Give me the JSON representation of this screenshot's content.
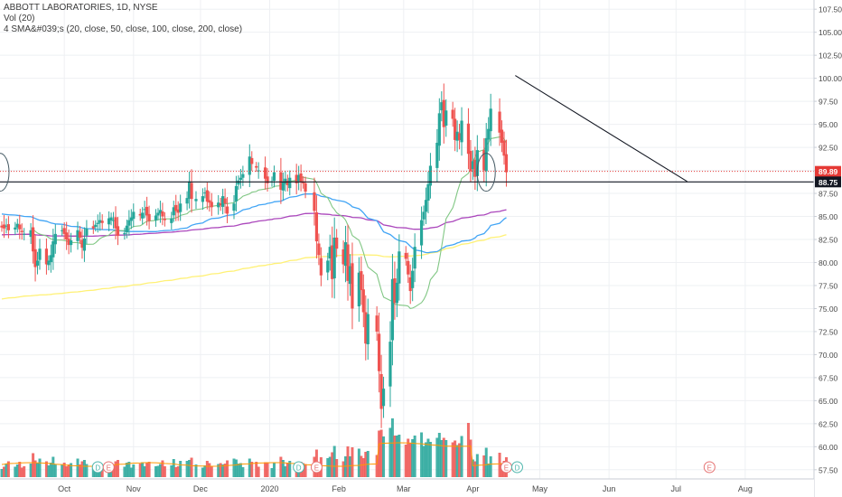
{
  "legend": {
    "title": "ABBOTT LABORATORIES, 1D, NYSE",
    "volume": "Vol (20)",
    "sma": "4 SMA&#039;s (20, close, 50, close, 100, close, 200, close)"
  },
  "chart_data": {
    "type": "candlestick",
    "title": "ABBOTT LABORATORIES, 1D, NYSE",
    "y_axis": {
      "min": 56.5,
      "max": 108.5,
      "ticks": [
        57.5,
        60.0,
        62.5,
        65.0,
        67.5,
        70.0,
        72.5,
        75.0,
        77.5,
        80.0,
        82.5,
        85.0,
        87.5,
        90.0,
        92.5,
        95.0,
        97.5,
        100.0,
        102.5,
        105.0,
        107.5
      ],
      "tick_labels": [
        "57.50",
        "60.00",
        "62.50",
        "65.00",
        "67.50",
        "70.00",
        "72.50",
        "75.00",
        "77.50",
        "80.00",
        "82.50",
        "85.00",
        "87.50",
        "90.00",
        "92.50",
        "95.00",
        "97.50",
        "100.00",
        "102.50",
        "105.00",
        "107.50"
      ],
      "position": "right"
    },
    "x_axis": {
      "labels": [
        {
          "text": "Oct",
          "date": "2019-10-01"
        },
        {
          "text": "Nov",
          "date": "2019-11-01"
        },
        {
          "text": "Dec",
          "date": "2019-12-01"
        },
        {
          "text": "2020",
          "date": "2020-01-01"
        },
        {
          "text": "Feb",
          "date": "2020-02-01"
        },
        {
          "text": "Mar",
          "date": "2020-03-01"
        },
        {
          "text": "Apr",
          "date": "2020-04-01"
        },
        {
          "text": "May",
          "date": "2020-05-01"
        },
        {
          "text": "Jun",
          "date": "2020-06-01"
        },
        {
          "text": "Jul",
          "date": "2020-07-01"
        },
        {
          "text": "Aug",
          "date": "2020-08-01"
        }
      ]
    },
    "price_labels": [
      {
        "text": "89.89",
        "value": 89.89,
        "color": "#e53935",
        "style": "dotted"
      },
      {
        "text": "88.75",
        "value": 88.75,
        "color": "#131722",
        "style": "solid"
      }
    ],
    "colors": {
      "up": "#26a69a",
      "down": "#ef5350",
      "sma20": "#81c784",
      "sma50": "#42a5f5",
      "sma100": "#ab47bc",
      "sma200": "#fff176",
      "trendline": "#131722"
    },
    "closes": [
      83.8,
      83.7,
      84.0,
      83.5,
      83.8,
      84.2,
      83.6,
      83.3,
      83.1,
      83.5,
      81.2,
      79.5,
      80.2,
      81.5,
      79.8,
      80.2,
      80.8,
      82.3,
      83.1,
      83.5,
      83.1,
      82.5,
      81.9,
      82.4,
      83.5,
      82.7,
      81.6,
      82.6,
      83.7,
      83.7,
      84.1,
      84.3,
      84.6,
      84.3,
      84.8,
      84.9,
      84.6,
      83.7,
      82.9,
      83.2,
      84.0,
      84.6,
      84.9,
      85.5,
      85.1,
      85.4,
      85.8,
      85.1,
      84.5,
      85.1,
      85.4,
      85.7,
      85.0,
      84.6,
      84.8,
      86.0,
      85.6,
      85.4,
      86.4,
      87.0,
      88.8,
      86.9,
      86.9,
      87.2,
      87.6,
      86.6,
      86.5,
      86.0,
      86.5,
      86.2,
      87.2,
      86.4,
      85.3,
      86.4,
      88.3,
      88.9,
      89.2,
      89.6,
      91.5,
      90.7,
      90.3,
      90.0,
      89.1,
      88.6,
      88.8,
      89.8,
      87.9,
      88.7,
      89.1,
      88.4,
      89.2,
      88.6,
      89.5,
      88.7,
      88.6,
      87.7,
      85.6,
      82.3,
      80.8,
      78.6,
      80.2,
      81.7,
      78.2,
      82.7,
      81.5,
      79.8,
      82.2,
      78.0,
      79.6,
      75.0,
      78.9,
      77.0,
      74.6,
      71.2,
      74.4,
      72.5,
      68.2,
      64.1,
      66.3,
      71.4,
      78.2,
      75.6,
      77.8,
      81.2,
      80.4,
      78.7,
      76.9,
      79.1,
      81.7,
      84.6,
      85.5,
      86.8,
      88.5,
      90.5,
      93.0,
      96.2,
      97.4,
      94.7,
      96.5,
      95.6,
      93.3,
      94.2,
      93.3,
      95.4,
      91.8,
      89.9,
      91.0,
      89.3,
      92.2,
      90.0,
      93.5,
      94.5,
      96.7,
      94.1,
      93.0,
      91.6,
      89.8
    ],
    "volume_color_down": "#ef5350",
    "volume_color_up": "#26a69a",
    "events": [
      {
        "label": "D",
        "date": "2019-10-16"
      },
      {
        "label": "E",
        "date": "2019-10-16"
      },
      {
        "label": "D",
        "date": "2020-01-14"
      },
      {
        "label": "E",
        "date": "2020-01-22"
      },
      {
        "label": "E",
        "date": "2020-04-16"
      },
      {
        "label": "D",
        "date": "2020-04-16"
      },
      {
        "label": "E",
        "date": "2020-07-16"
      }
    ],
    "trendline": {
      "from": {
        "date": "2020-04-20",
        "value": 100.3
      },
      "to": {
        "date": "2020-07-06",
        "value": 88.8
      }
    },
    "support_line": {
      "value": 88.75
    },
    "grid": true
  }
}
